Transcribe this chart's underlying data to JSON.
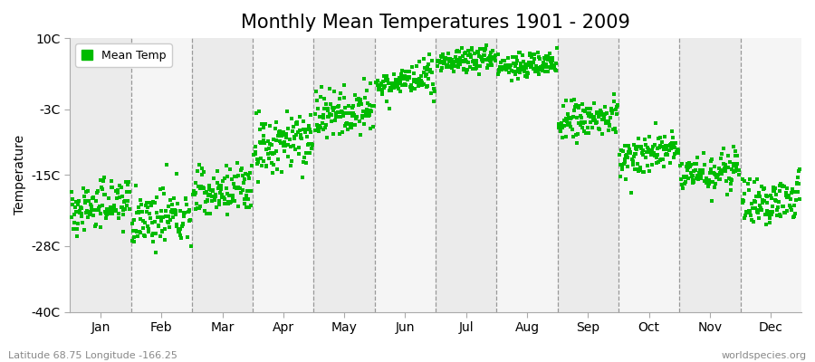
{
  "title": "Monthly Mean Temperatures 1901 - 2009",
  "ylabel": "Temperature",
  "xlabel_bottom_left": "Latitude 68.75 Longitude -166.25",
  "xlabel_bottom_right": "worldspecies.org",
  "legend_label": "Mean Temp",
  "marker_color": "#00BB00",
  "marker_size": 5,
  "background_color": "#FFFFFF",
  "plot_bg_color_even": "#EBEBEB",
  "plot_bg_color_odd": "#F5F5F5",
  "ylim": [
    -40,
    10
  ],
  "yticks": [
    -40,
    -28,
    -15,
    -3,
    10
  ],
  "ytick_labels": [
    "-40C",
    "-28C",
    "-15C",
    "-3C",
    "10C"
  ],
  "months": [
    "Jan",
    "Feb",
    "Mar",
    "Apr",
    "May",
    "Jun",
    "Jul",
    "Aug",
    "Sep",
    "Oct",
    "Nov",
    "Dec"
  ],
  "month_boundaries": [
    1.0,
    2.0,
    3.0,
    4.0,
    5.0,
    6.0,
    7.0,
    8.0,
    9.0,
    10.0,
    11.0
  ],
  "xlim": [
    0,
    12
  ],
  "title_fontsize": 15,
  "axis_fontsize": 10,
  "tick_fontsize": 10,
  "n_years": 109,
  "year_start": 1901,
  "monthly_means": [
    -21.5,
    -23.5,
    -19.0,
    -11.0,
    -4.5,
    1.5,
    5.5,
    4.5,
    -5.5,
    -12.0,
    -15.0,
    -20.5
  ],
  "monthly_spreads": [
    4.0,
    4.5,
    4.5,
    5.0,
    4.0,
    2.5,
    2.0,
    2.0,
    3.5,
    3.5,
    3.0,
    4.0
  ],
  "monthly_trends": [
    0.02,
    0.01,
    0.02,
    0.03,
    0.02,
    0.01,
    0.01,
    0.01,
    0.01,
    0.02,
    0.01,
    0.02
  ]
}
